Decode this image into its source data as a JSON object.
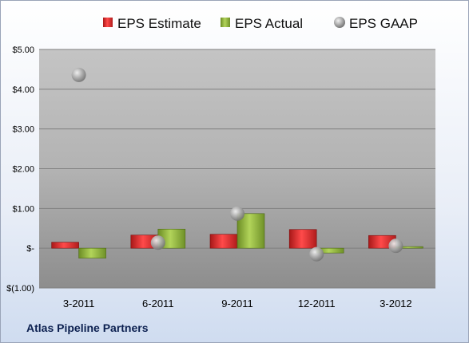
{
  "chart_data": {
    "type": "bar",
    "categories": [
      "3-2011",
      "6-2011",
      "9-2011",
      "12-2011",
      "3-2012"
    ],
    "series": [
      {
        "name": "EPS Estimate",
        "kind": "bar",
        "color": "#d42a2a",
        "values": [
          0.15,
          0.33,
          0.35,
          0.47,
          0.32
        ]
      },
      {
        "name": "EPS Actual",
        "kind": "bar",
        "color": "#8db23a",
        "values": [
          -0.25,
          0.48,
          0.87,
          -0.12,
          0.04
        ]
      },
      {
        "name": "EPS GAAP",
        "kind": "scatter",
        "color": "#9a9a9a",
        "values": [
          4.36,
          0.14,
          0.87,
          -0.15,
          0.06
        ]
      }
    ],
    "y_ticks": [
      {
        "value": 5,
        "label": "$5.00"
      },
      {
        "value": 4,
        "label": "$4.00"
      },
      {
        "value": 3,
        "label": "$3.00"
      },
      {
        "value": 2,
        "label": "$2.00"
      },
      {
        "value": 1,
        "label": "$1.00"
      },
      {
        "value": 0,
        "label": "$-"
      },
      {
        "value": -1,
        "label": "$(1.00)"
      }
    ],
    "ylim": [
      -1,
      5
    ],
    "grid": true,
    "legend_position": "top"
  },
  "footer": {
    "company": "Atlas Pipeline Partners"
  }
}
